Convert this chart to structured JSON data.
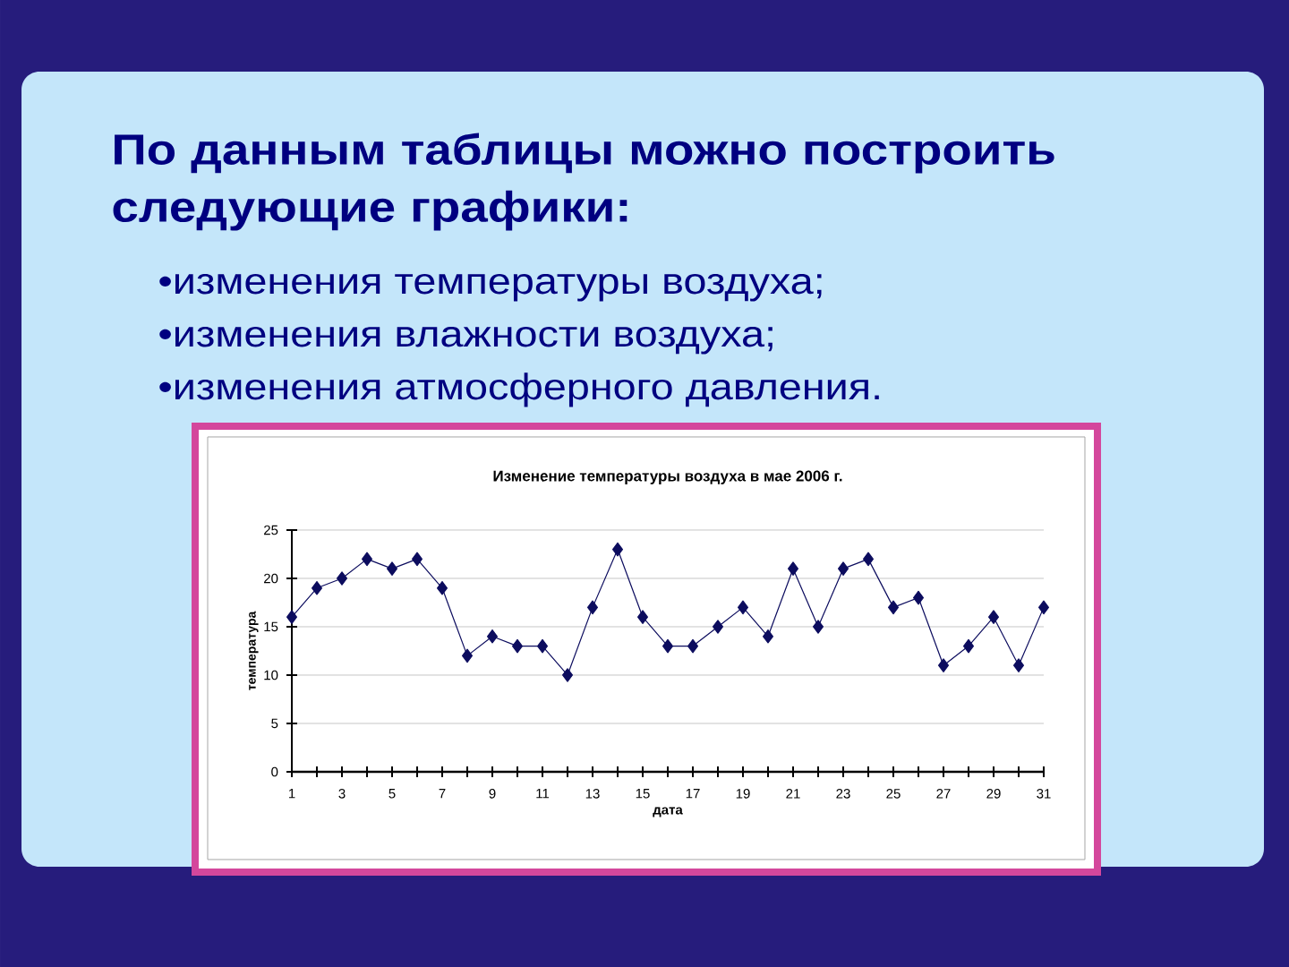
{
  "chart_data": {
    "type": "line",
    "title": "Изменение температуры воздуха в мае 2006 г.",
    "xlabel": "дата",
    "ylabel": "температура",
    "x": [
      1,
      2,
      3,
      4,
      5,
      6,
      7,
      8,
      9,
      10,
      11,
      12,
      13,
      14,
      15,
      16,
      17,
      18,
      19,
      20,
      21,
      22,
      23,
      24,
      25,
      26,
      27,
      28,
      29,
      30,
      31
    ],
    "values": [
      16,
      19,
      20,
      22,
      21,
      22,
      19,
      12,
      14,
      13,
      13,
      10,
      17,
      23,
      16,
      13,
      13,
      15,
      17,
      14,
      21,
      15,
      21,
      22,
      17,
      18,
      11,
      13,
      16,
      11,
      17
    ],
    "color": "#0c0c5e",
    "marker": "diamond",
    "grid": "y",
    "xlim": [
      1,
      31
    ],
    "xticks": [
      1,
      {
        "value": 2,
        "label": null
      },
      3,
      {
        "value": 4,
        "label": null
      },
      5,
      {
        "value": 6,
        "label": null
      },
      7,
      {
        "value": 8,
        "label": null
      },
      9,
      {
        "value": 10,
        "label": null
      },
      11,
      {
        "value": 12,
        "label": null
      },
      13,
      {
        "value": 14,
        "label": null
      },
      15,
      {
        "value": 16,
        "label": null
      },
      17,
      {
        "value": 18,
        "label": null
      },
      19,
      {
        "value": 20,
        "label": null
      },
      21,
      {
        "value": 22,
        "label": null
      },
      23,
      {
        "value": 24,
        "label": null
      },
      25,
      {
        "value": 26,
        "label": null
      },
      27,
      {
        "value": 28,
        "label": null
      },
      29,
      {
        "value": 30,
        "label": null
      },
      31
    ],
    "ylim": [
      0,
      25
    ],
    "yticks": [
      0,
      5,
      10,
      15,
      20,
      25
    ],
    "annotations": [
      "По данным таблицы можно построить следующие графики:",
      "•изменения температуры воздуха;",
      "•изменения влажности воздуха;",
      "•изменения атмосферного давления."
    ]
  }
}
